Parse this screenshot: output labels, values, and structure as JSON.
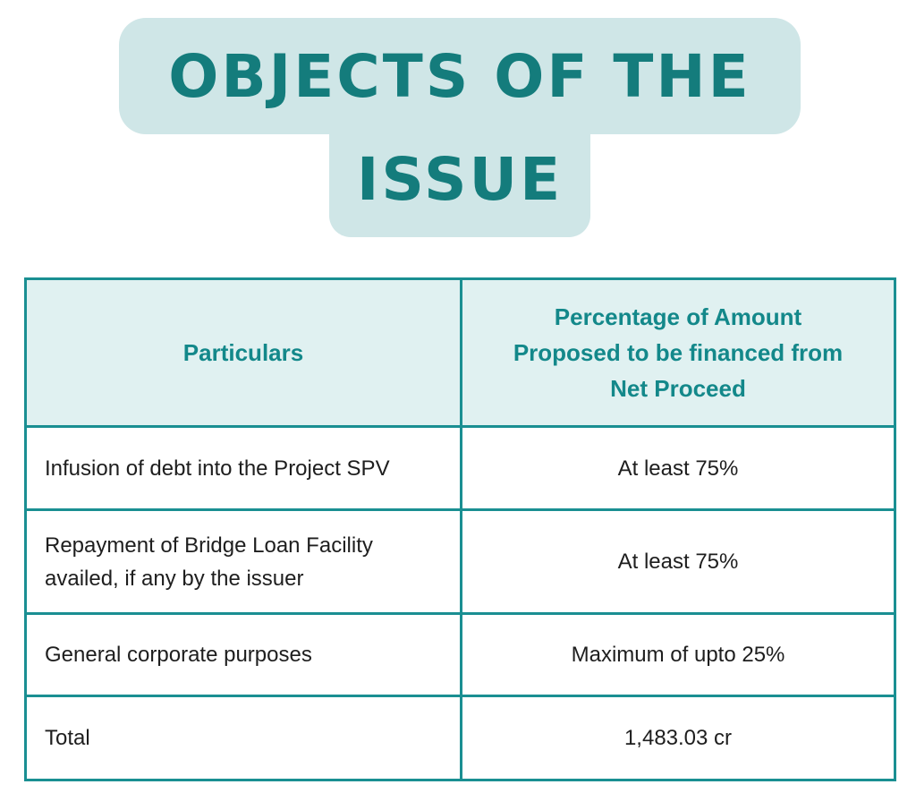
{
  "title": "OBJECTS OF THE ISSUE",
  "table": {
    "header": [
      "Particulars",
      "Percentage of Amount Proposed to be financed from Net Proceed"
    ],
    "rows": [
      [
        "Infusion of debt into the Project SPV",
        "At least 75%"
      ],
      [
        "Repayment of Bridge Loan Facility availed, if any by the issuer",
        "At least 75%"
      ],
      [
        "General corporate purposes",
        "Maximum of upto 25%"
      ],
      [
        "Total",
        "1,483.03 cr"
      ]
    ]
  }
}
